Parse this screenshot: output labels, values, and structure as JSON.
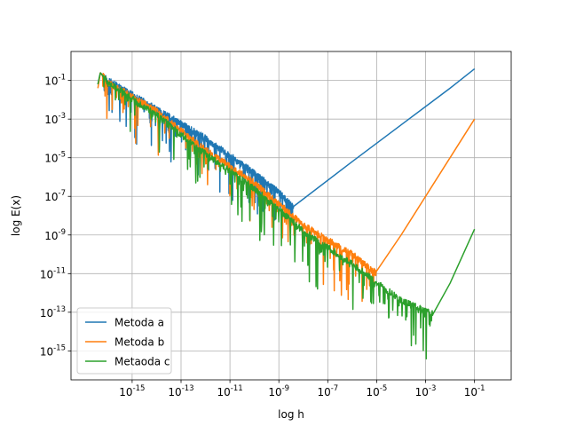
{
  "chart_data": {
    "type": "line",
    "title": "",
    "xlabel": "log h",
    "ylabel": "log E(x)",
    "xscale": "log",
    "yscale": "log",
    "xlim_exp": [
      -17.5,
      0.5
    ],
    "ylim_exp": [
      -16.5,
      0.5
    ],
    "x_ticks": [
      {
        "exp": -15,
        "label": "-15"
      },
      {
        "exp": -13,
        "label": "-13"
      },
      {
        "exp": -11,
        "label": "-11"
      },
      {
        "exp": -9,
        "label": "-9"
      },
      {
        "exp": -7,
        "label": "-7"
      },
      {
        "exp": -5,
        "label": "-5"
      },
      {
        "exp": -3,
        "label": "-3"
      },
      {
        "exp": -1,
        "label": "-1"
      }
    ],
    "y_ticks": [
      {
        "exp": -15,
        "label": "-15"
      },
      {
        "exp": -13,
        "label": "-13"
      },
      {
        "exp": -11,
        "label": "-11"
      },
      {
        "exp": -9,
        "label": "-9"
      },
      {
        "exp": -7,
        "label": "-7"
      },
      {
        "exp": -5,
        "label": "-5"
      },
      {
        "exp": -3,
        "label": "-3"
      },
      {
        "exp": -1,
        "label": "-1"
      }
    ],
    "tick_base": "10",
    "grid": true,
    "legend_position": "lower-left",
    "series": [
      {
        "name": "Metoda a",
        "color": "#1f77b4",
        "noise_until_exp": -8.4,
        "points": [
          [
            -16.4,
            -1.2
          ],
          [
            -16.3,
            -0.6
          ],
          [
            -16.0,
            -1.0
          ],
          [
            -14.0,
            -2.5
          ],
          [
            -12.0,
            -4.0
          ],
          [
            -10.0,
            -5.8
          ],
          [
            -9.0,
            -6.8
          ],
          [
            -8.4,
            -7.6
          ],
          [
            -6.0,
            -5.2
          ],
          [
            -4.0,
            -3.3
          ],
          [
            -2.0,
            -1.4
          ],
          [
            -1.0,
            -0.4
          ]
        ]
      },
      {
        "name": "Metoda b",
        "color": "#ff7f0e",
        "noise_until_exp": -5.0,
        "points": [
          [
            -16.4,
            -1.4
          ],
          [
            -16.3,
            -0.6
          ],
          [
            -16.0,
            -1.1
          ],
          [
            -14.0,
            -2.6
          ],
          [
            -12.0,
            -4.6
          ],
          [
            -10.0,
            -6.3
          ],
          [
            -8.0,
            -8.5
          ],
          [
            -6.0,
            -10.0
          ],
          [
            -5.0,
            -11.0
          ],
          [
            -4.0,
            -9.0
          ],
          [
            -2.0,
            -5.0
          ],
          [
            -1.0,
            -3.0
          ]
        ]
      },
      {
        "name": "Metaoda c",
        "color": "#2ca02c",
        "noise_until_exp": -2.7,
        "points": [
          [
            -16.4,
            -1.2
          ],
          [
            -16.3,
            -0.6
          ],
          [
            -16.0,
            -1.1
          ],
          [
            -14.0,
            -2.8
          ],
          [
            -12.0,
            -4.8
          ],
          [
            -10.0,
            -6.6
          ],
          [
            -8.0,
            -8.8
          ],
          [
            -6.0,
            -10.5
          ],
          [
            -4.0,
            -12.4
          ],
          [
            -2.7,
            -13.1
          ],
          [
            -2.0,
            -11.5
          ],
          [
            -1.0,
            -8.7
          ]
        ]
      }
    ]
  }
}
